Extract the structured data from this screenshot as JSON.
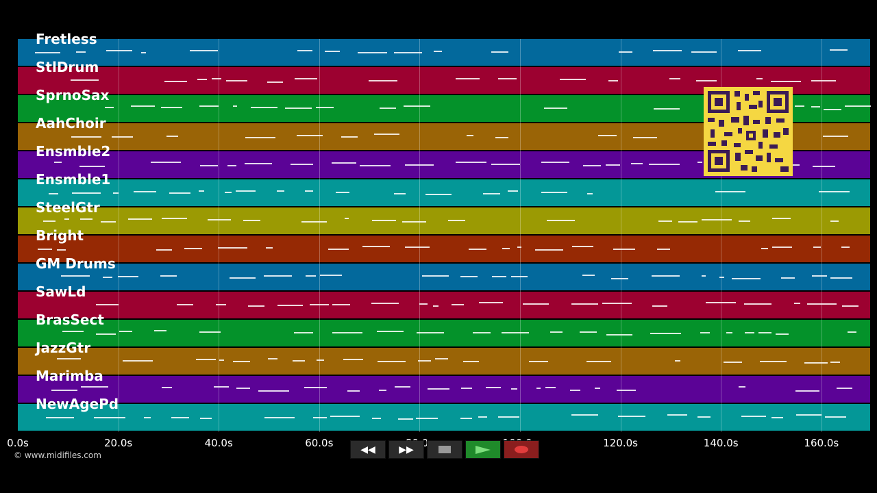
{
  "tracks": [
    {
      "name": "Fretless",
      "color": "#03699c"
    },
    {
      "name": "StlDrum",
      "color": "#9c0130"
    },
    {
      "name": "SprnoSax",
      "color": "#04922a"
    },
    {
      "name": "AahChoir",
      "color": "#9a6406"
    },
    {
      "name": "Ensmble2",
      "color": "#5b0396"
    },
    {
      "name": "Ensmble1",
      "color": "#049797"
    },
    {
      "name": "SteelGtr",
      "color": "#9b9a03"
    },
    {
      "name": "Bright",
      "color": "#962904"
    },
    {
      "name": "GM Drums",
      "color": "#03699c"
    },
    {
      "name": "SawLd",
      "color": "#9c0130"
    },
    {
      "name": "BrasSect",
      "color": "#04922a"
    },
    {
      "name": "JazzGtr",
      "color": "#9a6406"
    },
    {
      "name": "Marimba",
      "color": "#5b0396"
    },
    {
      "name": "NewAgePd",
      "color": "#049797"
    }
  ],
  "axis": {
    "ticks": [
      "0.0s",
      "20.0s",
      "40.0s",
      "60.0s",
      "80.0s",
      "100.0s",
      "120.0s",
      "140.0s",
      "160.0s"
    ]
  },
  "copyright": "© www.midifiles.com",
  "transport": {
    "rewind": "rewind-icon",
    "fast_forward": "fast-forward-icon",
    "stop": "stop-icon",
    "play": "play-icon",
    "record": "record-icon"
  }
}
